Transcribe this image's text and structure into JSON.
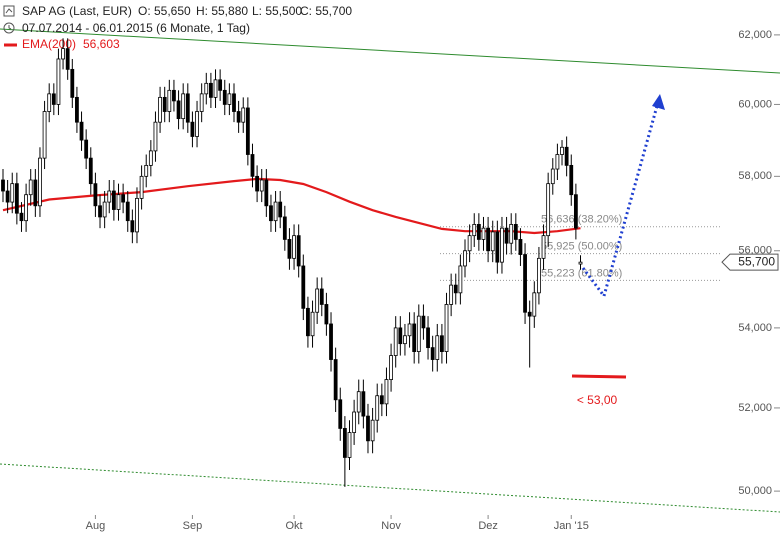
{
  "chart_data": {
    "type": "candlestick",
    "title": "SAP AG (Last, EUR)",
    "ohlc_labels": [
      "O: 55,650",
      "H: 55,880",
      "L: 55,500",
      "C: 55,700"
    ],
    "subtitle": "07.07.2014 - 06.01.2015 (6 Monate, 1 Tag)",
    "categories": [
      null,
      null,
      null,
      null,
      null,
      null,
      null,
      null,
      null,
      null,
      null,
      null,
      null,
      null,
      null,
      null,
      null,
      null,
      null,
      null,
      "Aug",
      null,
      null,
      null,
      null,
      null,
      null,
      null,
      null,
      null,
      null,
      null,
      null,
      null,
      null,
      null,
      null,
      null,
      null,
      null,
      null,
      "Sep",
      null,
      null,
      null,
      null,
      null,
      null,
      null,
      null,
      null,
      null,
      null,
      null,
      null,
      null,
      null,
      null,
      null,
      null,
      null,
      null,
      null,
      "Okt",
      null,
      null,
      null,
      null,
      null,
      null,
      null,
      null,
      null,
      null,
      null,
      null,
      null,
      null,
      null,
      null,
      null,
      null,
      null,
      null,
      "Nov",
      null,
      null,
      null,
      null,
      null,
      null,
      null,
      null,
      null,
      null,
      null,
      null,
      null,
      null,
      null,
      null,
      null,
      null,
      null,
      null,
      "Dez",
      null,
      null,
      null,
      null,
      null,
      null,
      null,
      null,
      null,
      null,
      null,
      null,
      null,
      null,
      null,
      null,
      null,
      "Jan '15",
      null,
      null
    ],
    "open": [
      57.9,
      57.6,
      57.3,
      57.8,
      57.0,
      56.8,
      57.5,
      57.9,
      57.2,
      58.5,
      59.8,
      60.3,
      60.0,
      61.3,
      61.6,
      61.0,
      60.2,
      59.5,
      59.0,
      58.5,
      57.8,
      57.2,
      56.9,
      57.3,
      57.6,
      57.1,
      57.5,
      57.3,
      56.8,
      56.5,
      57.4,
      58.0,
      58.3,
      58.7,
      59.5,
      60.2,
      59.8,
      60.4,
      60.1,
      59.6,
      60.3,
      59.5,
      59.1,
      59.8,
      60.3,
      60.6,
      60.2,
      60.7,
      60.4,
      60.0,
      60.3,
      59.8,
      59.5,
      59.9,
      58.6,
      58.0,
      57.6,
      57.9,
      57.2,
      56.8,
      57.3,
      56.9,
      56.3,
      55.8,
      56.4,
      55.6,
      54.5,
      53.8,
      54.4,
      55.0,
      54.6,
      54.1,
      53.2,
      52.2,
      51.5,
      50.8,
      51.4,
      51.9,
      52.4,
      51.8,
      51.2,
      51.7,
      52.3,
      52.1,
      52.7,
      53.3,
      54.0,
      53.6,
      53.8,
      54.1,
      53.4,
      54.3,
      54.0,
      53.5,
      53.2,
      53.8,
      53.4,
      54.6,
      55.1,
      54.9,
      55.6,
      56.0,
      56.4,
      56.7,
      56.3,
      56.6,
      56.0,
      56.5,
      55.7,
      56.6,
      56.2,
      56.7,
      56.3,
      55.9,
      54.4,
      54.3,
      54.9,
      55.8,
      56.4,
      57.8,
      58.2,
      58.6,
      58.8,
      58.3,
      57.5,
      55.65
    ],
    "high": [
      58.2,
      57.9,
      58.1,
      58.1,
      57.3,
      57.8,
      58.2,
      58.2,
      58.8,
      60.1,
      60.6,
      60.6,
      61.6,
      61.9,
      61.9,
      61.3,
      60.5,
      59.8,
      59.3,
      58.8,
      58.1,
      57.5,
      57.6,
      57.9,
      57.9,
      57.8,
      57.8,
      57.6,
      57.1,
      57.7,
      58.3,
      58.6,
      59.0,
      59.8,
      60.5,
      60.5,
      60.7,
      60.7,
      60.4,
      60.6,
      60.6,
      59.8,
      60.1,
      60.6,
      60.9,
      60.9,
      61.0,
      61.0,
      60.7,
      60.6,
      60.6,
      60.1,
      60.2,
      60.2,
      58.9,
      58.3,
      58.2,
      58.2,
      57.5,
      57.6,
      57.6,
      57.2,
      56.6,
      56.7,
      56.7,
      55.9,
      54.8,
      54.7,
      55.3,
      55.3,
      54.9,
      54.4,
      53.5,
      52.5,
      51.8,
      51.7,
      52.2,
      52.7,
      52.7,
      52.1,
      52.0,
      52.6,
      52.6,
      53.0,
      53.6,
      54.3,
      54.3,
      54.1,
      54.4,
      54.4,
      54.6,
      54.6,
      54.3,
      53.8,
      54.1,
      54.1,
      54.9,
      55.4,
      55.4,
      55.9,
      56.3,
      56.7,
      57.0,
      57.0,
      56.9,
      56.9,
      56.8,
      56.8,
      56.9,
      56.9,
      57.0,
      57.0,
      56.6,
      56.2,
      54.7,
      55.2,
      56.1,
      56.7,
      58.1,
      58.5,
      58.9,
      59.0,
      59.1,
      58.6,
      57.8,
      55.88
    ],
    "low": [
      57.3,
      57.0,
      57.0,
      56.7,
      56.5,
      56.5,
      57.2,
      56.9,
      56.9,
      58.2,
      59.5,
      59.7,
      59.7,
      61.0,
      60.7,
      59.9,
      59.2,
      58.7,
      58.2,
      57.5,
      56.9,
      56.6,
      56.6,
      57.0,
      56.8,
      56.8,
      57.0,
      56.5,
      56.2,
      56.2,
      57.1,
      57.7,
      58.0,
      58.4,
      59.2,
      59.5,
      59.5,
      59.8,
      59.3,
      59.3,
      59.2,
      58.8,
      58.8,
      59.5,
      60.0,
      59.9,
      59.9,
      60.1,
      59.7,
      59.7,
      59.5,
      59.2,
      59.2,
      58.3,
      57.7,
      57.3,
      57.3,
      56.9,
      56.5,
      56.5,
      56.6,
      56.0,
      55.5,
      55.5,
      55.3,
      54.2,
      53.5,
      53.5,
      54.1,
      54.3,
      53.8,
      52.9,
      51.9,
      51.2,
      50.1,
      50.5,
      51.1,
      51.6,
      51.5,
      50.9,
      50.9,
      51.4,
      51.8,
      51.8,
      52.4,
      53.0,
      53.3,
      53.3,
      53.5,
      53.1,
      53.1,
      53.7,
      53.2,
      52.9,
      52.9,
      53.1,
      53.1,
      54.3,
      54.6,
      54.6,
      55.3,
      55.7,
      56.1,
      56.0,
      56.0,
      55.7,
      55.7,
      55.4,
      55.4,
      55.9,
      55.9,
      56.0,
      55.6,
      54.1,
      53.0,
      54.0,
      54.6,
      55.5,
      56.1,
      57.5,
      57.9,
      58.3,
      58.0,
      57.2,
      56.3,
      55.5
    ],
    "close": [
      57.6,
      57.3,
      57.8,
      57.0,
      56.8,
      57.5,
      57.9,
      57.2,
      58.5,
      59.8,
      60.3,
      60.0,
      61.3,
      61.6,
      61.0,
      60.2,
      59.5,
      59.0,
      58.5,
      57.8,
      57.2,
      56.9,
      57.3,
      57.6,
      57.1,
      57.5,
      57.3,
      56.8,
      56.5,
      57.4,
      58.0,
      58.3,
      58.7,
      59.5,
      60.2,
      59.8,
      60.4,
      60.1,
      59.6,
      60.3,
      59.5,
      59.1,
      59.8,
      60.3,
      60.6,
      60.2,
      60.7,
      60.4,
      60.0,
      60.3,
      59.8,
      59.5,
      59.9,
      58.6,
      58.0,
      57.6,
      57.9,
      57.2,
      56.8,
      57.3,
      56.9,
      56.3,
      55.8,
      56.4,
      55.6,
      54.5,
      53.8,
      54.4,
      55.0,
      54.6,
      54.1,
      53.2,
      52.2,
      51.5,
      50.8,
      51.4,
      51.9,
      52.4,
      51.8,
      51.2,
      51.7,
      52.3,
      52.1,
      52.7,
      53.3,
      54.0,
      53.6,
      53.8,
      54.1,
      53.4,
      54.3,
      54.0,
      53.5,
      53.2,
      53.8,
      53.4,
      54.6,
      55.1,
      54.9,
      55.6,
      56.0,
      56.4,
      56.7,
      56.3,
      56.6,
      56.0,
      56.5,
      55.7,
      56.6,
      56.2,
      56.7,
      56.3,
      55.9,
      54.4,
      54.3,
      54.9,
      55.8,
      56.4,
      57.8,
      58.2,
      58.6,
      58.8,
      58.3,
      57.5,
      56.6,
      55.7
    ],
    "up_color": "#ffffff",
    "down_color": "#000000",
    "ema": {
      "name": "EMA(200)",
      "color": "#e31a1c",
      "legend_value": "56,603",
      "x": [
        0,
        10,
        20,
        30,
        40,
        50,
        55,
        60,
        65,
        70,
        75,
        80,
        85,
        90,
        95,
        100,
        105,
        110,
        115,
        120,
        125
      ],
      "values": [
        57.08,
        57.37,
        57.48,
        57.57,
        57.73,
        57.87,
        57.93,
        57.9,
        57.79,
        57.57,
        57.31,
        57.08,
        56.9,
        56.74,
        56.58,
        56.52,
        56.52,
        56.52,
        56.47,
        56.52,
        56.6
      ]
    },
    "fib_levels": [
      {
        "value": 56.636,
        "label": "56,636 (38.20%)"
      },
      {
        "value": 55.925,
        "label": "55,925 (50.00%)"
      },
      {
        "value": 55.223,
        "label": "55,223 (61.80%)"
      }
    ],
    "last_price_label": "55,700",
    "target_label": "< 53,00",
    "ylim": [
      49.44,
      62.88
    ],
    "yticks": [
      {
        "value": 50,
        "label": "50,000"
      },
      {
        "value": 52,
        "label": "52,000"
      },
      {
        "value": 54,
        "label": "54,000"
      },
      {
        "value": 56,
        "label": "56,000"
      },
      {
        "value": 58,
        "label": "58,000"
      },
      {
        "value": 60,
        "label": "60,000"
      },
      {
        "value": 62,
        "label": "62,000"
      }
    ],
    "log_scale": true
  }
}
